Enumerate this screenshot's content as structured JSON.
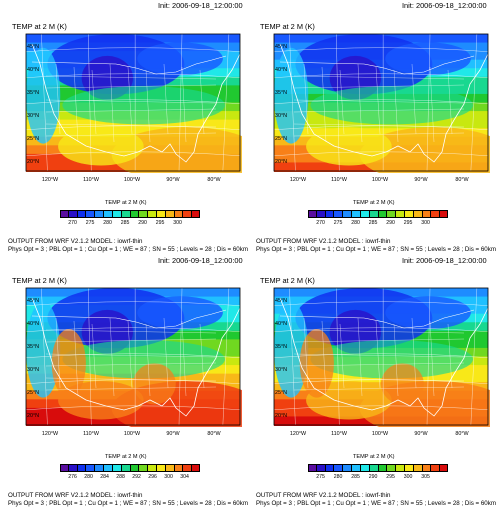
{
  "panels": [
    {
      "init": "Init: 2006-09-18_12:00:00",
      "title": "TEMP at 2 M   (K)",
      "cb_title": "TEMP at 2 M   (K)",
      "ticks": [
        "270",
        "275",
        "280",
        "285",
        "290",
        "295",
        "300"
      ],
      "output_line1": "OUTPUT FROM WRF V2.1.2 MODEL : iowrf-thin",
      "output_line2": "Phys Opt = 3 ; PBL Opt = 1 ; Cu Opt = 1 ; WE = 87 ; SN = 55 ; Levels = 28 ; Dis = 60km",
      "warm_level": 0.35
    },
    {
      "init": "Init: 2006-09-18_12:00:00",
      "title": "TEMP at 2 M   (K)",
      "cb_title": "TEMP at 2 M   (K)",
      "ticks": [
        "270",
        "275",
        "280",
        "285",
        "290",
        "295",
        "300"
      ],
      "output_line1": "OUTPUT FROM WRF V2.1.2 MODEL : iowrf-thin",
      "output_line2": "Phys Opt = 3 ; PBL Opt = 1 ; Cu Opt = 1 ; WE = 87 ; SN = 55 ; Levels = 28 ; Dis = 60km",
      "warm_level": 0.3
    },
    {
      "init": "Init: 2006-09-18_12:00:00",
      "title": "TEMP at 2 M   (K)",
      "cb_title": "TEMP at 2 M   (K)",
      "ticks": [
        "276",
        "280",
        "284",
        "288",
        "292",
        "296",
        "300",
        "304"
      ],
      "output_line1": "OUTPUT FROM WRF V2.1.2 MODEL : iowrf-thin",
      "output_line2": "Phys Opt = 3 ; PBL Opt = 1 ; Cu Opt = 1 ; WE = 87 ; SN = 55 ; Levels = 28 ; Dis = 60km",
      "warm_level": 0.7
    },
    {
      "init": "Init: 2006-09-18_12:00:00",
      "title": "TEMP at 2 M   (K)",
      "cb_title": "TEMP at 2 M   (K)",
      "ticks": [
        "275",
        "280",
        "285",
        "290",
        "295",
        "300",
        "305"
      ],
      "output_line1": "OUTPUT FROM WRF V2.1.2 MODEL : iowrf-thin",
      "output_line2": "Phys Opt = 3 ; PBL Opt = 1 ; Cu Opt = 1 ; WE = 87 ; SN = 55 ; Levels = 28 ; Dis = 60km",
      "warm_level": 0.6
    }
  ],
  "lat_labels": [
    "45°N",
    "40°N",
    "35°N",
    "30°N",
    "25°N",
    "20°N"
  ],
  "lon_labels": [
    "120°W",
    "110°W",
    "100°W",
    "90°W",
    "80°W"
  ],
  "palette": [
    "#5a0ea0",
    "#2a10c8",
    "#1030f0",
    "#1858ff",
    "#1e8cff",
    "#20c0ff",
    "#20e8e8",
    "#18d890",
    "#20c830",
    "#70d820",
    "#c8e810",
    "#f8e818",
    "#f8b818",
    "#f88018",
    "#f04010",
    "#d80c0c"
  ]
}
